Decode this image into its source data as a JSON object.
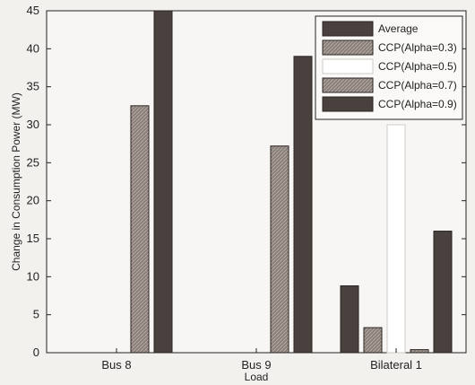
{
  "chart_data": {
    "type": "bar",
    "xlabel": "Load",
    "ylabel": "Change in Consumption Power (MW)",
    "ylim": [
      0,
      45
    ],
    "yticks": [
      0,
      5,
      10,
      15,
      20,
      25,
      30,
      35,
      40,
      45
    ],
    "categories": [
      "Bus 8",
      "Bus 9",
      "Bilateral 1"
    ],
    "legend_position": "top-right",
    "series": [
      {
        "name": "Average",
        "values": [
          0,
          0,
          8.8
        ],
        "color": "#4a403d",
        "pattern": "solid"
      },
      {
        "name": "CCP(Alpha=0.3)",
        "values": [
          0,
          0,
          3.3
        ],
        "color": "#8a7e79",
        "pattern": "hatch"
      },
      {
        "name": "CCP(Alpha=0.5)",
        "values": [
          0,
          0,
          30
        ],
        "color": "#ffffff",
        "pattern": "solid"
      },
      {
        "name": "CCP(Alpha=0.7)",
        "values": [
          32.5,
          27.2,
          0.4
        ],
        "color": "#8a7e79",
        "pattern": "hatch"
      },
      {
        "name": "CCP(Alpha=0.9)",
        "values": [
          45,
          39,
          16
        ],
        "color": "#4a403d",
        "pattern": "solid"
      }
    ]
  }
}
